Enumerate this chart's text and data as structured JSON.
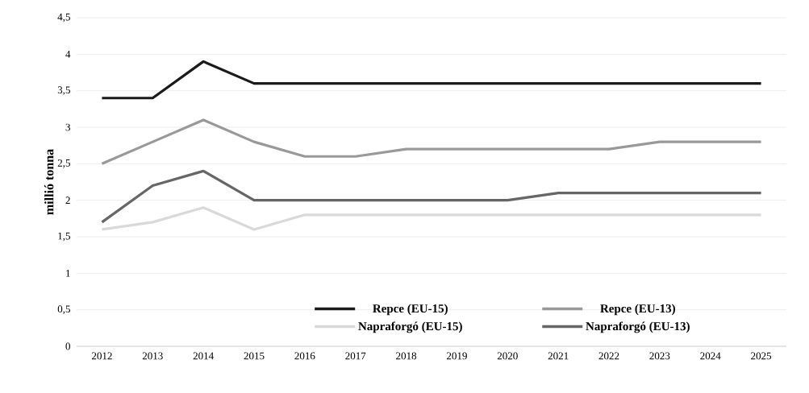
{
  "chart_data": {
    "type": "line",
    "ylabel": "millió tonna",
    "categories": [
      "2012",
      "2013",
      "2014",
      "2015",
      "2016",
      "2017",
      "2018",
      "2019",
      "2020",
      "2021",
      "2022",
      "2023",
      "2024",
      "2025"
    ],
    "series": [
      {
        "name": "Repce (EU-15)",
        "color": "#1a1a1a",
        "values": [
          3.4,
          3.4,
          3.9,
          3.6,
          3.6,
          3.6,
          3.6,
          3.6,
          3.6,
          3.6,
          3.6,
          3.6,
          3.6,
          3.6
        ]
      },
      {
        "name": "Repce (EU-13)",
        "color": "#999999",
        "values": [
          2.5,
          2.8,
          3.1,
          2.8,
          2.6,
          2.6,
          2.7,
          2.7,
          2.7,
          2.7,
          2.7,
          2.8,
          2.8,
          2.8
        ]
      },
      {
        "name": "Napraforgó (EU-15)",
        "color": "#d9d9d9",
        "values": [
          1.6,
          1.7,
          1.9,
          1.6,
          1.8,
          1.8,
          1.8,
          1.8,
          1.8,
          1.8,
          1.8,
          1.8,
          1.8,
          1.8
        ]
      },
      {
        "name": "Napraforgó (EU-13)",
        "color": "#666666",
        "values": [
          1.7,
          2.2,
          2.4,
          2.0,
          2.0,
          2.0,
          2.0,
          2.0,
          2.0,
          2.1,
          2.1,
          2.1,
          2.1,
          2.1
        ]
      }
    ],
    "ylim": [
      0,
      4.5
    ],
    "yticks": [
      0,
      {
        "value": 0.5,
        "label": "0,5"
      },
      1,
      {
        "value": 1.5,
        "label": "1,5"
      },
      2,
      {
        "value": 2.5,
        "label": "2,5"
      },
      3,
      {
        "value": 3.5,
        "label": "3,5"
      },
      4,
      {
        "value": 4.5,
        "label": "4,5"
      }
    ],
    "grid": "y",
    "legend": "bottom",
    "marker": "none",
    "line_style": "solid"
  }
}
